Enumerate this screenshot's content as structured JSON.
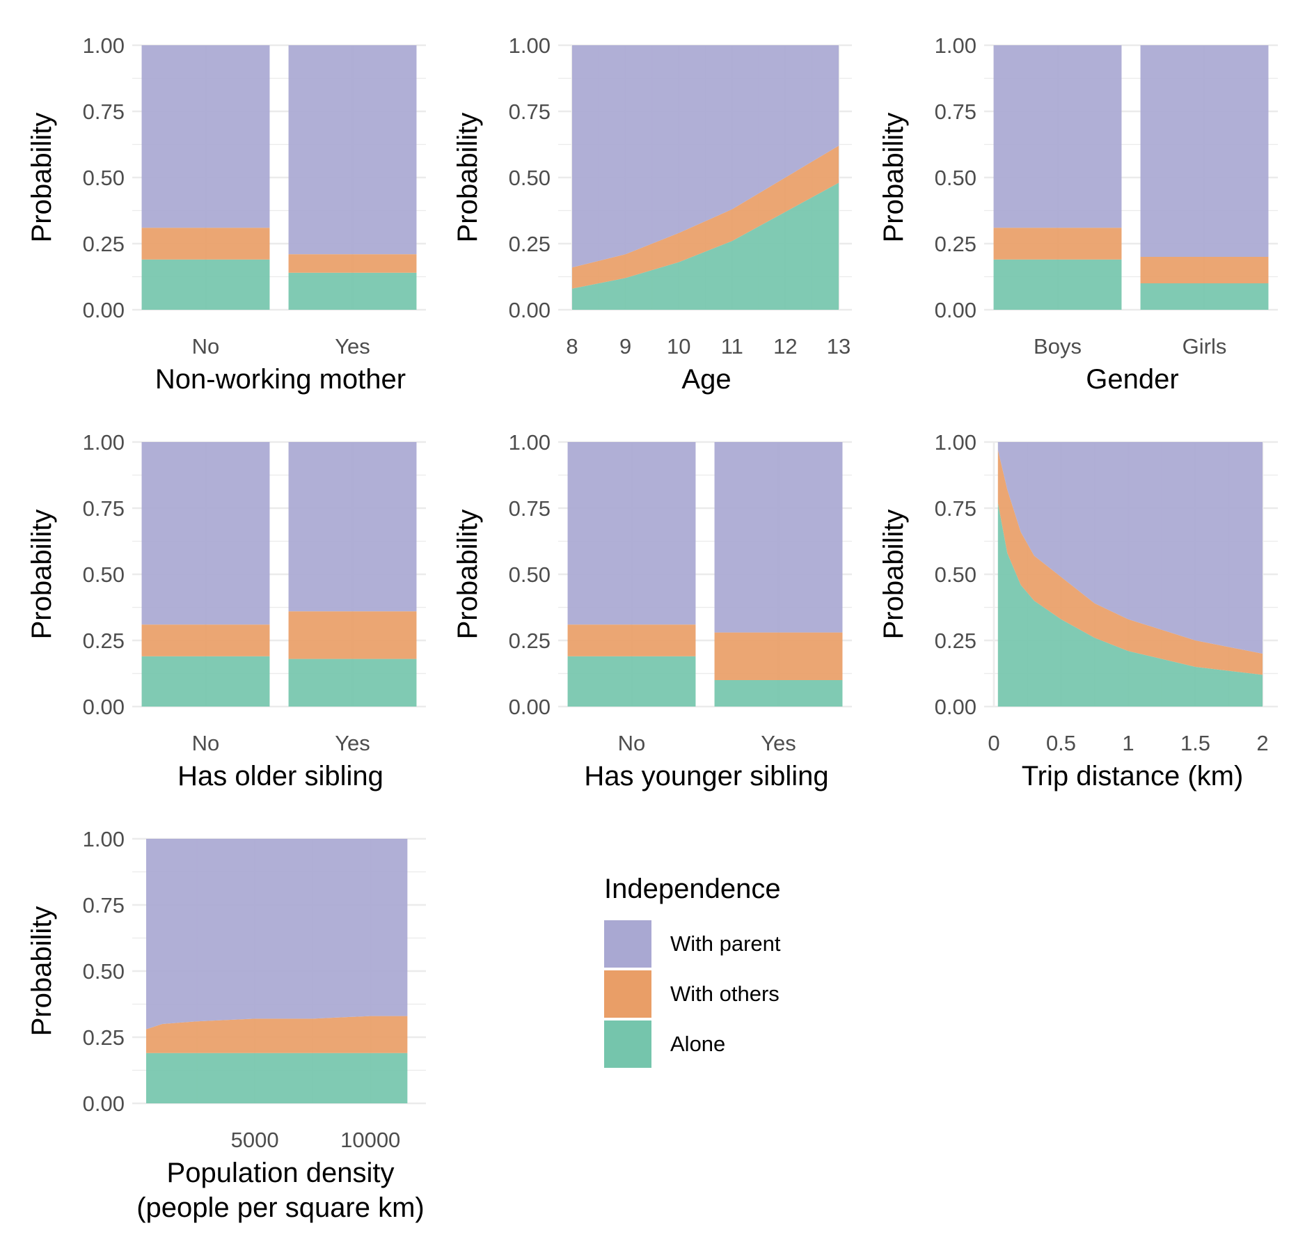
{
  "colors": {
    "With parent": "#A9A8D2",
    "With others": "#E99E67",
    "Alone": "#75C5AC",
    "grid": "#ebebeb"
  },
  "legend": {
    "title": "Independence",
    "items": [
      "With parent",
      "With others",
      "Alone"
    ]
  },
  "chart_data": [
    {
      "type": "bar",
      "stacked": true,
      "xlabel": "Non-working mother",
      "ylabel": "Probability",
      "ylim": [
        0,
        1
      ],
      "yticks": [
        "0.00",
        "0.25",
        "0.50",
        "0.75",
        "1.00"
      ],
      "categories": [
        "No",
        "Yes"
      ],
      "series": [
        {
          "name": "Alone",
          "values": [
            0.19,
            0.14
          ]
        },
        {
          "name": "With others",
          "values": [
            0.12,
            0.07
          ]
        },
        {
          "name": "With parent",
          "values": [
            0.69,
            0.79
          ]
        }
      ]
    },
    {
      "type": "area",
      "stacked": true,
      "xlabel": "Age",
      "ylabel": "Probability",
      "xlim": [
        8,
        13
      ],
      "ylim": [
        0,
        1
      ],
      "xticks": [
        "8",
        "9",
        "10",
        "11",
        "12",
        "13"
      ],
      "yticks": [
        "0.00",
        "0.25",
        "0.50",
        "0.75",
        "1.00"
      ],
      "x": [
        8,
        9,
        10,
        11,
        12,
        13
      ],
      "series": [
        {
          "name": "Alone",
          "values": [
            0.08,
            0.12,
            0.18,
            0.26,
            0.37,
            0.48
          ]
        },
        {
          "name": "With others",
          "values": [
            0.08,
            0.09,
            0.11,
            0.12,
            0.13,
            0.14
          ]
        },
        {
          "name": "With parent",
          "values": [
            0.84,
            0.79,
            0.71,
            0.62,
            0.5,
            0.38
          ]
        }
      ]
    },
    {
      "type": "bar",
      "stacked": true,
      "xlabel": "Gender",
      "ylabel": "Probability",
      "ylim": [
        0,
        1
      ],
      "yticks": [
        "0.00",
        "0.25",
        "0.50",
        "0.75",
        "1.00"
      ],
      "categories": [
        "Boys",
        "Girls"
      ],
      "series": [
        {
          "name": "Alone",
          "values": [
            0.19,
            0.1
          ]
        },
        {
          "name": "With others",
          "values": [
            0.12,
            0.1
          ]
        },
        {
          "name": "With parent",
          "values": [
            0.69,
            0.8
          ]
        }
      ]
    },
    {
      "type": "bar",
      "stacked": true,
      "xlabel": "Has older sibling",
      "ylabel": "Probability",
      "ylim": [
        0,
        1
      ],
      "yticks": [
        "0.00",
        "0.25",
        "0.50",
        "0.75",
        "1.00"
      ],
      "categories": [
        "No",
        "Yes"
      ],
      "series": [
        {
          "name": "Alone",
          "values": [
            0.19,
            0.18
          ]
        },
        {
          "name": "With others",
          "values": [
            0.12,
            0.18
          ]
        },
        {
          "name": "With parent",
          "values": [
            0.69,
            0.64
          ]
        }
      ]
    },
    {
      "type": "bar",
      "stacked": true,
      "xlabel": "Has younger sibling",
      "ylabel": "Probability",
      "ylim": [
        0,
        1
      ],
      "yticks": [
        "0.00",
        "0.25",
        "0.50",
        "0.75",
        "1.00"
      ],
      "categories": [
        "No",
        "Yes"
      ],
      "series": [
        {
          "name": "Alone",
          "values": [
            0.19,
            0.1
          ]
        },
        {
          "name": "With others",
          "values": [
            0.12,
            0.18
          ]
        },
        {
          "name": "With parent",
          "values": [
            0.69,
            0.72
          ]
        }
      ]
    },
    {
      "type": "area",
      "stacked": true,
      "xlabel": "Trip distance (km)",
      "ylabel": "Probability",
      "xlim": [
        0,
        2
      ],
      "ylim": [
        0,
        1
      ],
      "xticks": [
        "0",
        "0.5",
        "1",
        "1.5",
        "2"
      ],
      "yticks": [
        "0.00",
        "0.25",
        "0.50",
        "0.75",
        "1.00"
      ],
      "x": [
        0.03,
        0.1,
        0.2,
        0.3,
        0.5,
        0.75,
        1.0,
        1.5,
        2.0
      ],
      "series": [
        {
          "name": "Alone",
          "values": [
            0.77,
            0.58,
            0.46,
            0.4,
            0.33,
            0.26,
            0.21,
            0.15,
            0.12
          ]
        },
        {
          "name": "With others",
          "values": [
            0.2,
            0.24,
            0.2,
            0.17,
            0.16,
            0.13,
            0.12,
            0.1,
            0.08
          ]
        },
        {
          "name": "With parent",
          "values": [
            0.03,
            0.18,
            0.34,
            0.43,
            0.51,
            0.61,
            0.67,
            0.75,
            0.8
          ]
        }
      ]
    },
    {
      "type": "area",
      "stacked": true,
      "xlabel": "Population density",
      "xlabel2": "(people per square km)",
      "ylabel": "Probability",
      "xlim": [
        300,
        11800
      ],
      "ylim": [
        0,
        1
      ],
      "xticks": [
        "5000",
        "10000"
      ],
      "yticks": [
        "0.00",
        "0.25",
        "0.50",
        "0.75",
        "1.00"
      ],
      "x": [
        300,
        1000,
        2500,
        5000,
        7500,
        10000,
        11600
      ],
      "series": [
        {
          "name": "Alone",
          "values": [
            0.19,
            0.19,
            0.19,
            0.19,
            0.19,
            0.19,
            0.19
          ]
        },
        {
          "name": "With others",
          "values": [
            0.09,
            0.11,
            0.12,
            0.13,
            0.13,
            0.14,
            0.14
          ]
        },
        {
          "name": "With parent",
          "values": [
            0.72,
            0.7,
            0.69,
            0.68,
            0.68,
            0.67,
            0.67
          ]
        }
      ]
    }
  ]
}
